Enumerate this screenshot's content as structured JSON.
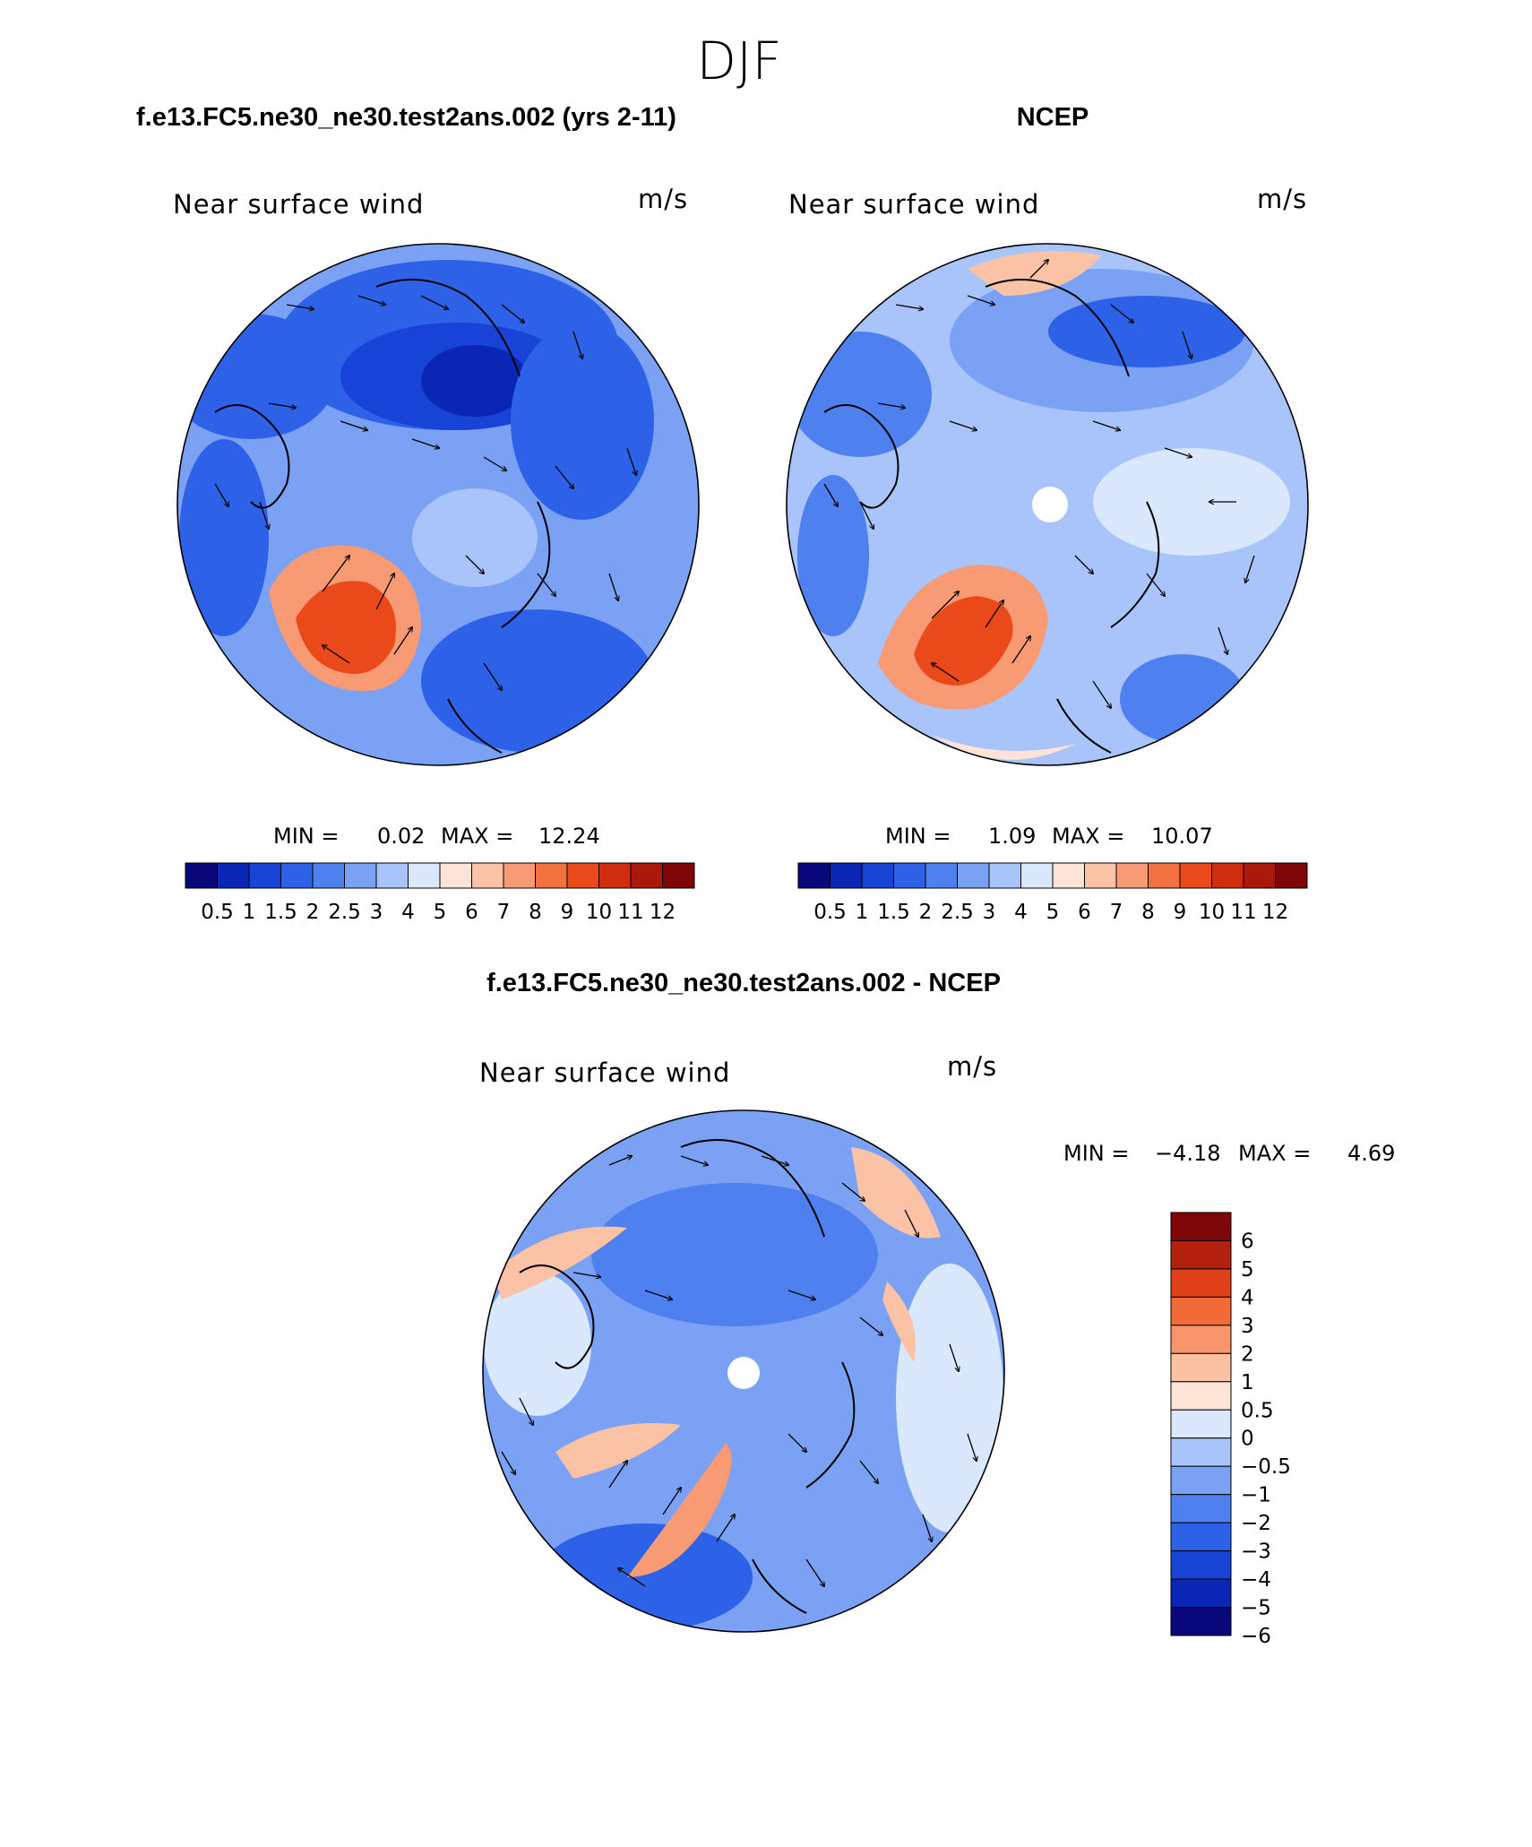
{
  "figure": {
    "title": "DJF"
  },
  "panels": [
    {
      "id": "model",
      "title": "f.e13.FC5.ne30_ne30.test2ans.002 (yrs 2-11)",
      "variable": "Near surface wind",
      "units": "m/s",
      "min_label": "MIN =",
      "min_value": "0.02",
      "max_label": "MAX =",
      "max_value": "12.24"
    },
    {
      "id": "obs",
      "title": "NCEP",
      "variable": "Near surface wind",
      "units": "m/s",
      "min_label": "MIN =",
      "min_value": "1.09",
      "max_label": "MAX =",
      "max_value": "10.07"
    },
    {
      "id": "diff",
      "title": "f.e13.FC5.ne30_ne30.test2ans.002 - NCEP",
      "variable": "Near surface wind",
      "units": "m/s",
      "min_label": "MIN =",
      "min_value": "−4.18",
      "max_label": "MAX =",
      "max_value": "4.69"
    }
  ],
  "colorbars": {
    "abs": {
      "orientation": "horizontal",
      "colors": [
        "#08087a",
        "#0a26b4",
        "#1744d6",
        "#2d62e8",
        "#4f80f0",
        "#7ba1f5",
        "#a9c4fa",
        "#d9e8fc",
        "#fde4d6",
        "#fbc2a6",
        "#f89a74",
        "#f3703f",
        "#ea4a1a",
        "#cf2d0e",
        "#ac1809",
        "#7f0606"
      ],
      "tick_labels": [
        "0.5",
        "1",
        "1.5",
        "2",
        "2.5",
        "3",
        "4",
        "5",
        "6",
        "7",
        "8",
        "9",
        "10",
        "11",
        "12"
      ]
    },
    "diff": {
      "orientation": "vertical",
      "colors": [
        "#7f0606",
        "#b3200c",
        "#e0401a",
        "#f26a36",
        "#f8956a",
        "#fbc1a0",
        "#fde4d6",
        "#d9e8fc",
        "#a9c4fa",
        "#7ba1f5",
        "#4f80f0",
        "#2d62e8",
        "#1744d6",
        "#0a26b4",
        "#08087a"
      ],
      "tick_labels": [
        "6",
        "5",
        "4",
        "3",
        "2",
        "1",
        "0.5",
        "0",
        "−0.5",
        "−1",
        "−2",
        "−3",
        "−4",
        "−5",
        "−6"
      ]
    }
  },
  "map_style": {
    "low_wind_color": "#1744d6",
    "mid_wind_color": "#a9c4fa",
    "high_wind_color": "#ea4a1a",
    "coastline_color": "#000000"
  }
}
